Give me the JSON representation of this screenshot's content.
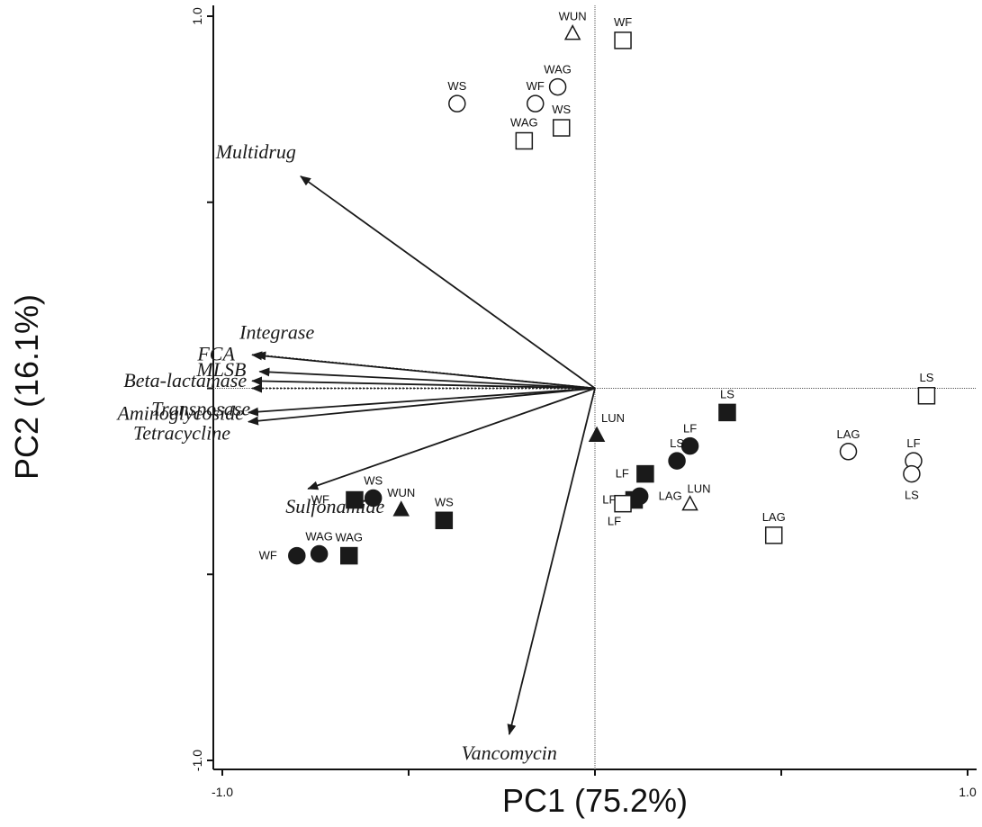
{
  "chart_data": {
    "type": "scatter",
    "subtype": "pca-biplot",
    "title": "",
    "xlabel": "PC1 (75.2%)",
    "ylabel": "PC2 (16.1%)",
    "xlim": [
      -1.0,
      1.0
    ],
    "ylim": [
      -1.0,
      1.0
    ],
    "x_tick_values": [
      -1.0,
      -0.5,
      0,
      0.5,
      1.0
    ],
    "y_tick_values": [
      -1.0,
      -0.5,
      0,
      0.5,
      1.0
    ],
    "x_tick_labels": [
      "-1.0",
      "1.0"
    ],
    "y_tick_labels": [
      "1.0",
      "-1.0"
    ],
    "zero_lines": true,
    "colors": {
      "axis": "#111111",
      "arrow": "#1a1a1a",
      "marker_fill": "#1a1a1a",
      "marker_open": "#ffffff",
      "reference_line": "#555555"
    },
    "loadings": [
      {
        "name": "Multidrug",
        "x": -0.79,
        "y": 0.57,
        "dashed": false
      },
      {
        "name": "Integrase",
        "x": -0.91,
        "y": 0.09,
        "dashed": true
      },
      {
        "name": "FCA",
        "x": -0.92,
        "y": 0.09,
        "dashed": false
      },
      {
        "name": "MLSB",
        "x": -0.9,
        "y": 0.045,
        "dashed": false
      },
      {
        "name": "Beta-lactamase",
        "x": -0.92,
        "y": 0.02,
        "dashed": false
      },
      {
        "name": "Transposase",
        "x": -0.92,
        "y": 0.0,
        "dashed": true
      },
      {
        "name": "Aminoglycoside",
        "x": -0.93,
        "y": -0.065,
        "dashed": false
      },
      {
        "name": "Tetracycline",
        "x": -0.93,
        "y": -0.09,
        "dashed": false
      },
      {
        "name": "Sulfonamide",
        "x": -0.77,
        "y": -0.27,
        "dashed": false
      },
      {
        "name": "Vancomycin",
        "x": -0.23,
        "y": -0.93,
        "dashed": false
      }
    ],
    "points": [
      {
        "label": "WUN",
        "x": -0.06,
        "y": 0.955,
        "shape": "triangle",
        "filled": false
      },
      {
        "label": "WF",
        "x": 0.075,
        "y": 0.935,
        "shape": "square",
        "filled": false
      },
      {
        "label": "WAG",
        "x": -0.1,
        "y": 0.81,
        "shape": "circle",
        "filled": false
      },
      {
        "label": "WF",
        "x": -0.16,
        "y": 0.765,
        "shape": "circle",
        "filled": false
      },
      {
        "label": "WS",
        "x": -0.37,
        "y": 0.765,
        "shape": "circle",
        "filled": false
      },
      {
        "label": "WS",
        "x": -0.09,
        "y": 0.7,
        "shape": "square",
        "filled": false
      },
      {
        "label": "WAG",
        "x": -0.19,
        "y": 0.665,
        "shape": "square",
        "filled": false
      },
      {
        "label": "LS",
        "x": 0.89,
        "y": -0.02,
        "shape": "square",
        "filled": false
      },
      {
        "label": "LS",
        "x": 0.355,
        "y": -0.065,
        "shape": "square",
        "filled": true
      },
      {
        "label": "LUN",
        "x": 0.005,
        "y": -0.125,
        "shape": "triangle",
        "filled": true
      },
      {
        "label": "LF",
        "x": 0.255,
        "y": -0.155,
        "shape": "circle",
        "filled": true
      },
      {
        "label": "LS",
        "x": 0.22,
        "y": -0.195,
        "shape": "circle",
        "filled": true
      },
      {
        "label": "LAG",
        "x": 0.68,
        "y": -0.17,
        "shape": "circle",
        "filled": false
      },
      {
        "label": "LF",
        "x": 0.855,
        "y": -0.195,
        "shape": "circle",
        "filled": false
      },
      {
        "label": "LS",
        "x": 0.85,
        "y": -0.23,
        "shape": "circle",
        "filled": false
      },
      {
        "label": "LF",
        "x": 0.135,
        "y": -0.23,
        "shape": "square",
        "filled": true
      },
      {
        "label": "LAG",
        "x": 0.12,
        "y": -0.29,
        "shape": "circle",
        "filled": true
      },
      {
        "label": "LF",
        "x": 0.105,
        "y": -0.3,
        "shape": "square",
        "filled": true
      },
      {
        "label": "LF",
        "x": 0.075,
        "y": -0.31,
        "shape": "square",
        "filled": false
      },
      {
        "label": "LUN",
        "x": 0.255,
        "y": -0.31,
        "shape": "triangle",
        "filled": false
      },
      {
        "label": "LAG",
        "x": 0.48,
        "y": -0.395,
        "shape": "square",
        "filled": false
      },
      {
        "label": "WF",
        "x": -0.645,
        "y": -0.3,
        "shape": "square",
        "filled": true
      },
      {
        "label": "WS",
        "x": -0.595,
        "y": -0.295,
        "shape": "circle",
        "filled": true
      },
      {
        "label": "WUN",
        "x": -0.52,
        "y": -0.325,
        "shape": "triangle",
        "filled": true
      },
      {
        "label": "WS",
        "x": -0.405,
        "y": -0.355,
        "shape": "square",
        "filled": true
      },
      {
        "label": "WAG",
        "x": -0.74,
        "y": -0.445,
        "shape": "circle",
        "filled": true
      },
      {
        "label": "WF",
        "x": -0.8,
        "y": -0.45,
        "shape": "circle",
        "filled": true
      },
      {
        "label": "WAG",
        "x": -0.66,
        "y": -0.45,
        "shape": "square",
        "filled": true
      }
    ]
  }
}
